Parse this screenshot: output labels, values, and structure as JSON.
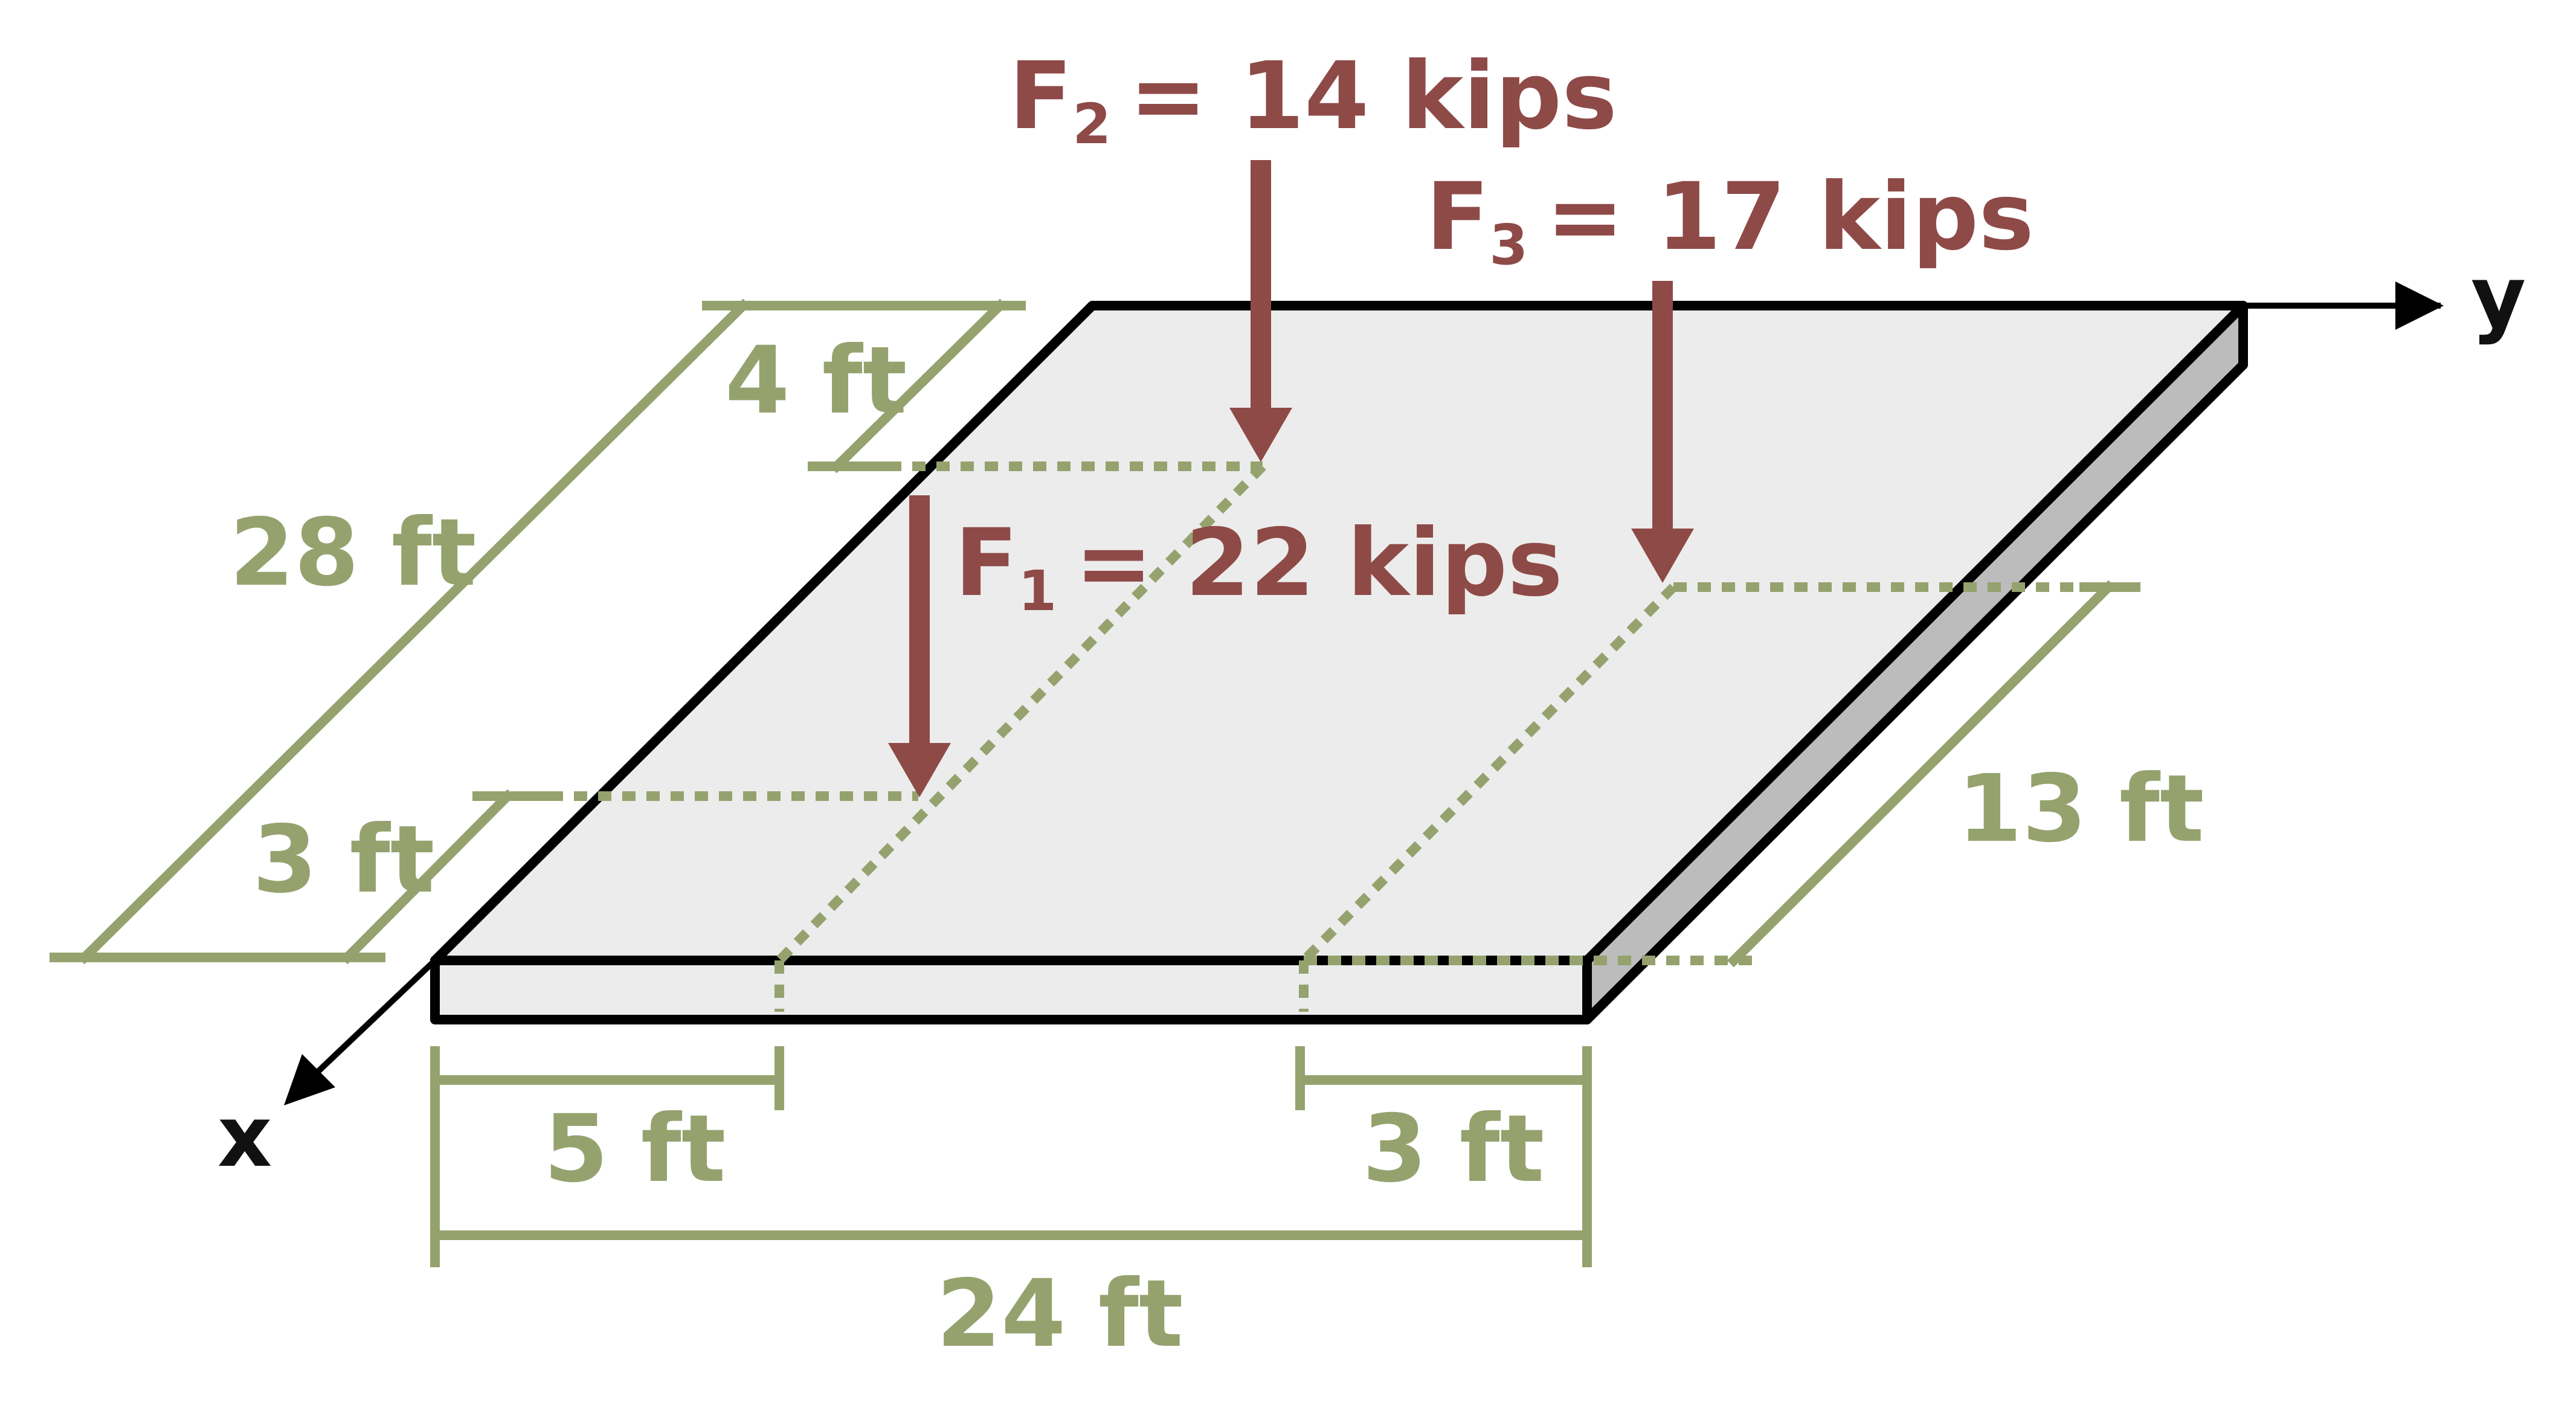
{
  "colors": {
    "force": "#8e4a47",
    "dimension": "#95a26e",
    "plate_top": "#ececec",
    "plate_side": "#bcbcbc",
    "outline": "#000000"
  },
  "axes": {
    "x": "x",
    "y": "y"
  },
  "forces": [
    {
      "symbol": "F",
      "subscript": "1",
      "value": "= 22 kips"
    },
    {
      "symbol": "F",
      "subscript": "2",
      "value": "= 14 kips"
    },
    {
      "symbol": "F",
      "subscript": "3",
      "value": "= 17 kips"
    }
  ],
  "dimensions": {
    "plate_width": "24 ft",
    "plate_depth": "28 ft",
    "f2_from_back": "4 ft",
    "f1_from_front": "3 ft",
    "f1_from_left": "5 ft",
    "f3_from_right": "3 ft",
    "f3_from_front": "13 ft"
  }
}
